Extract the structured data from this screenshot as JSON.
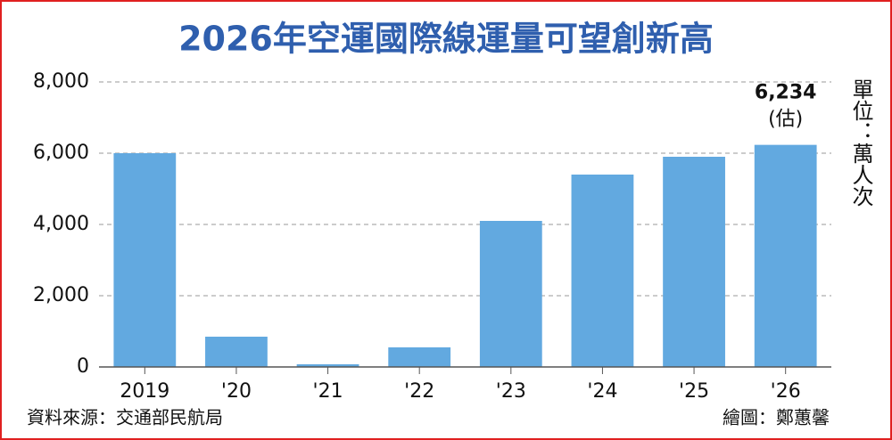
{
  "chart_data": {
    "type": "bar",
    "title": "2026年空運國際線運量可望創新高",
    "categories": [
      "2019",
      "'20",
      "'21",
      "'22",
      "'23",
      "'24",
      "'25",
      "'26"
    ],
    "values": [
      6000,
      850,
      75,
      550,
      4100,
      5400,
      5900,
      6234
    ],
    "value_labels": [
      null,
      null,
      null,
      null,
      null,
      null,
      null,
      "6,234"
    ],
    "annotation": "(估)",
    "unit": "單位：萬人次",
    "source": "資料來源：交通部民航局",
    "credit": "繪圖：鄭蕙馨",
    "color": "#62a9e0",
    "ylim": [
      0,
      8000
    ],
    "yticks": [
      0,
      {
        "value": 2000,
        "label": "2,000"
      },
      {
        "value": 4000,
        "label": "4,000"
      },
      {
        "value": 6000,
        "label": "6,000"
      },
      {
        "value": 8000,
        "label": "8,000"
      }
    ],
    "grid": true
  }
}
